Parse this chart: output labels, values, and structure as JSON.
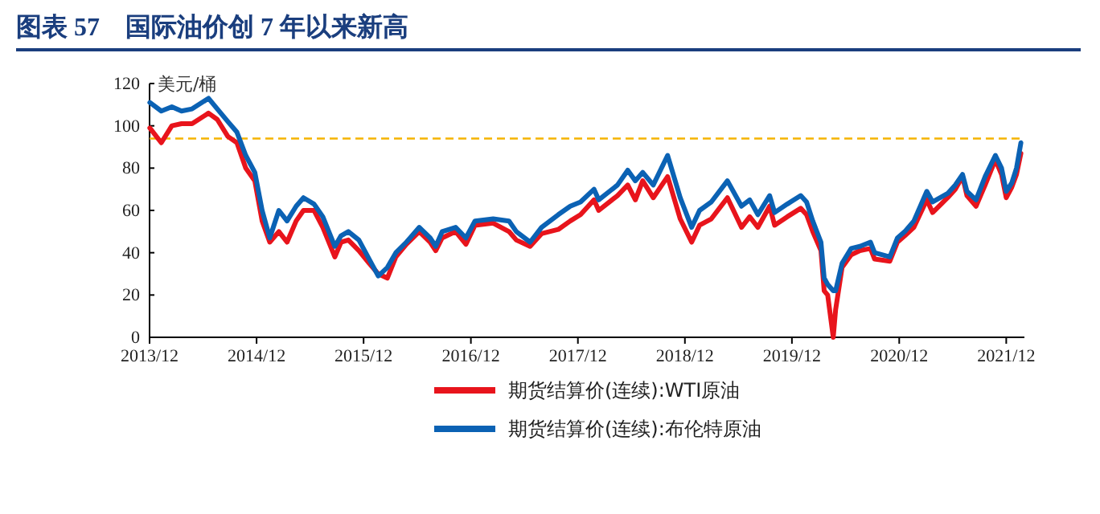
{
  "chart_data": {
    "type": "line",
    "title": "图表 57　国际油价创 7 年以来新高",
    "ylabel": "美元/桶",
    "x": [
      "2013-12-02",
      "2014-01-10",
      "2014-02-15",
      "2014-03-20",
      "2014-04-25",
      "2014-06-20",
      "2014-07-20",
      "2014-08-25",
      "2014-09-25",
      "2014-10-25",
      "2014-11-25",
      "2014-12-20",
      "2015-01-15",
      "2015-02-15",
      "2015-03-15",
      "2015-04-15",
      "2015-05-10",
      "2015-06-15",
      "2015-07-15",
      "2015-08-25",
      "2015-09-15",
      "2015-10-10",
      "2015-11-15",
      "2015-12-20",
      "2016-01-20",
      "2016-02-20",
      "2016-03-20",
      "2016-04-25",
      "2016-06-08",
      "2016-07-15",
      "2016-08-03",
      "2016-08-25",
      "2016-10-10",
      "2016-11-14",
      "2016-12-15",
      "2017-02-15",
      "2017-04-10",
      "2017-05-05",
      "2017-06-21",
      "2017-07-30",
      "2017-09-25",
      "2017-11-05",
      "2017-12-10",
      "2018-01-25",
      "2018-02-10",
      "2018-04-15",
      "2018-05-20",
      "2018-06-15",
      "2018-07-10",
      "2018-08-15",
      "2018-10-03",
      "2018-11-15",
      "2018-12-24",
      "2019-01-20",
      "2019-03-01",
      "2019-04-25",
      "2019-06-12",
      "2019-07-10",
      "2019-08-07",
      "2019-09-16",
      "2019-10-03",
      "2019-11-15",
      "2019-12-31",
      "2020-01-20",
      "2020-02-10",
      "2020-03-09",
      "2020-03-20",
      "2020-04-01",
      "2020-04-20",
      "2020-04-28",
      "2020-05-20",
      "2020-06-20",
      "2020-07-20",
      "2020-08-25",
      "2020-09-08",
      "2020-10-30",
      "2020-11-25",
      "2020-12-20",
      "2021-01-20",
      "2021-03-05",
      "2021-03-25",
      "2021-05-15",
      "2021-06-10",
      "2021-07-05",
      "2021-07-20",
      "2021-08-20",
      "2021-09-20",
      "2021-10-25",
      "2021-11-15",
      "2021-12-01",
      "2021-12-20",
      "2022-01-05",
      "2022-01-20"
    ],
    "series": [
      {
        "name": "期货结算价(连续):WTI原油",
        "color": "#e8141c",
        "values": [
          99,
          92,
          100,
          101,
          101,
          106,
          103,
          95,
          92,
          80,
          74,
          55,
          45,
          50,
          45,
          55,
          60,
          60,
          52,
          38,
          45,
          46,
          41,
          35,
          30,
          28,
          38,
          44,
          50,
          45,
          41,
          47,
          50,
          44,
          53,
          54,
          50,
          46,
          43,
          49,
          51,
          55,
          58,
          65,
          60,
          67,
          72,
          65,
          74,
          66,
          76,
          56,
          45,
          53,
          56,
          66,
          52,
          57,
          52,
          62,
          53,
          57,
          61,
          58,
          50,
          41,
          22,
          20,
          0,
          13,
          33,
          39,
          41,
          42,
          37,
          36,
          45,
          48,
          52,
          65,
          59,
          66,
          70,
          76,
          67,
          62,
          72,
          84,
          77,
          66,
          71,
          77,
          87
        ]
      },
      {
        "name": "期货结算价(连续):布伦特原油",
        "color": "#0b62b4",
        "values": [
          111,
          107,
          109,
          107,
          108,
          113,
          108,
          102,
          97,
          86,
          78,
          60,
          47,
          60,
          55,
          62,
          66,
          63,
          57,
          43,
          48,
          50,
          46,
          37,
          29,
          33,
          40,
          45,
          52,
          47,
          43,
          50,
          52,
          47,
          55,
          56,
          55,
          50,
          45,
          52,
          58,
          62,
          64,
          70,
          65,
          72,
          79,
          74,
          78,
          72,
          86,
          66,
          52,
          60,
          64,
          74,
          62,
          65,
          58,
          67,
          59,
          63,
          67,
          64,
          55,
          45,
          28,
          25,
          22,
          22,
          35,
          42,
          43,
          45,
          40,
          38,
          47,
          50,
          55,
          69,
          64,
          68,
          72,
          77,
          69,
          65,
          76,
          86,
          80,
          69,
          73,
          80,
          92
        ]
      }
    ],
    "xlim": [
      "2013-12-01",
      "2022-02-01"
    ],
    "xticks": [
      {
        "value": "2013-12-01",
        "label": "2013/12"
      },
      {
        "value": "2014-12-01",
        "label": "2014/12"
      },
      {
        "value": "2015-12-01",
        "label": "2015/12"
      },
      {
        "value": "2016-12-01",
        "label": "2016/12"
      },
      {
        "value": "2017-12-01",
        "label": "2017/12"
      },
      {
        "value": "2018-12-01",
        "label": "2018/12"
      },
      {
        "value": "2019-12-01",
        "label": "2019/12"
      },
      {
        "value": "2020-12-01",
        "label": "2020/12"
      },
      {
        "value": "2021-12-01",
        "label": "2021/12"
      }
    ],
    "ylim": [
      0,
      120
    ],
    "yticks": [
      0,
      20,
      40,
      60,
      80,
      100,
      120
    ],
    "ref_lines": [
      {
        "axis": "y",
        "value": 94,
        "color": "#f5b400",
        "line_style": "dashed"
      }
    ],
    "legend": "bottom",
    "grid": false,
    "line_style": "solid",
    "marker": "none"
  }
}
